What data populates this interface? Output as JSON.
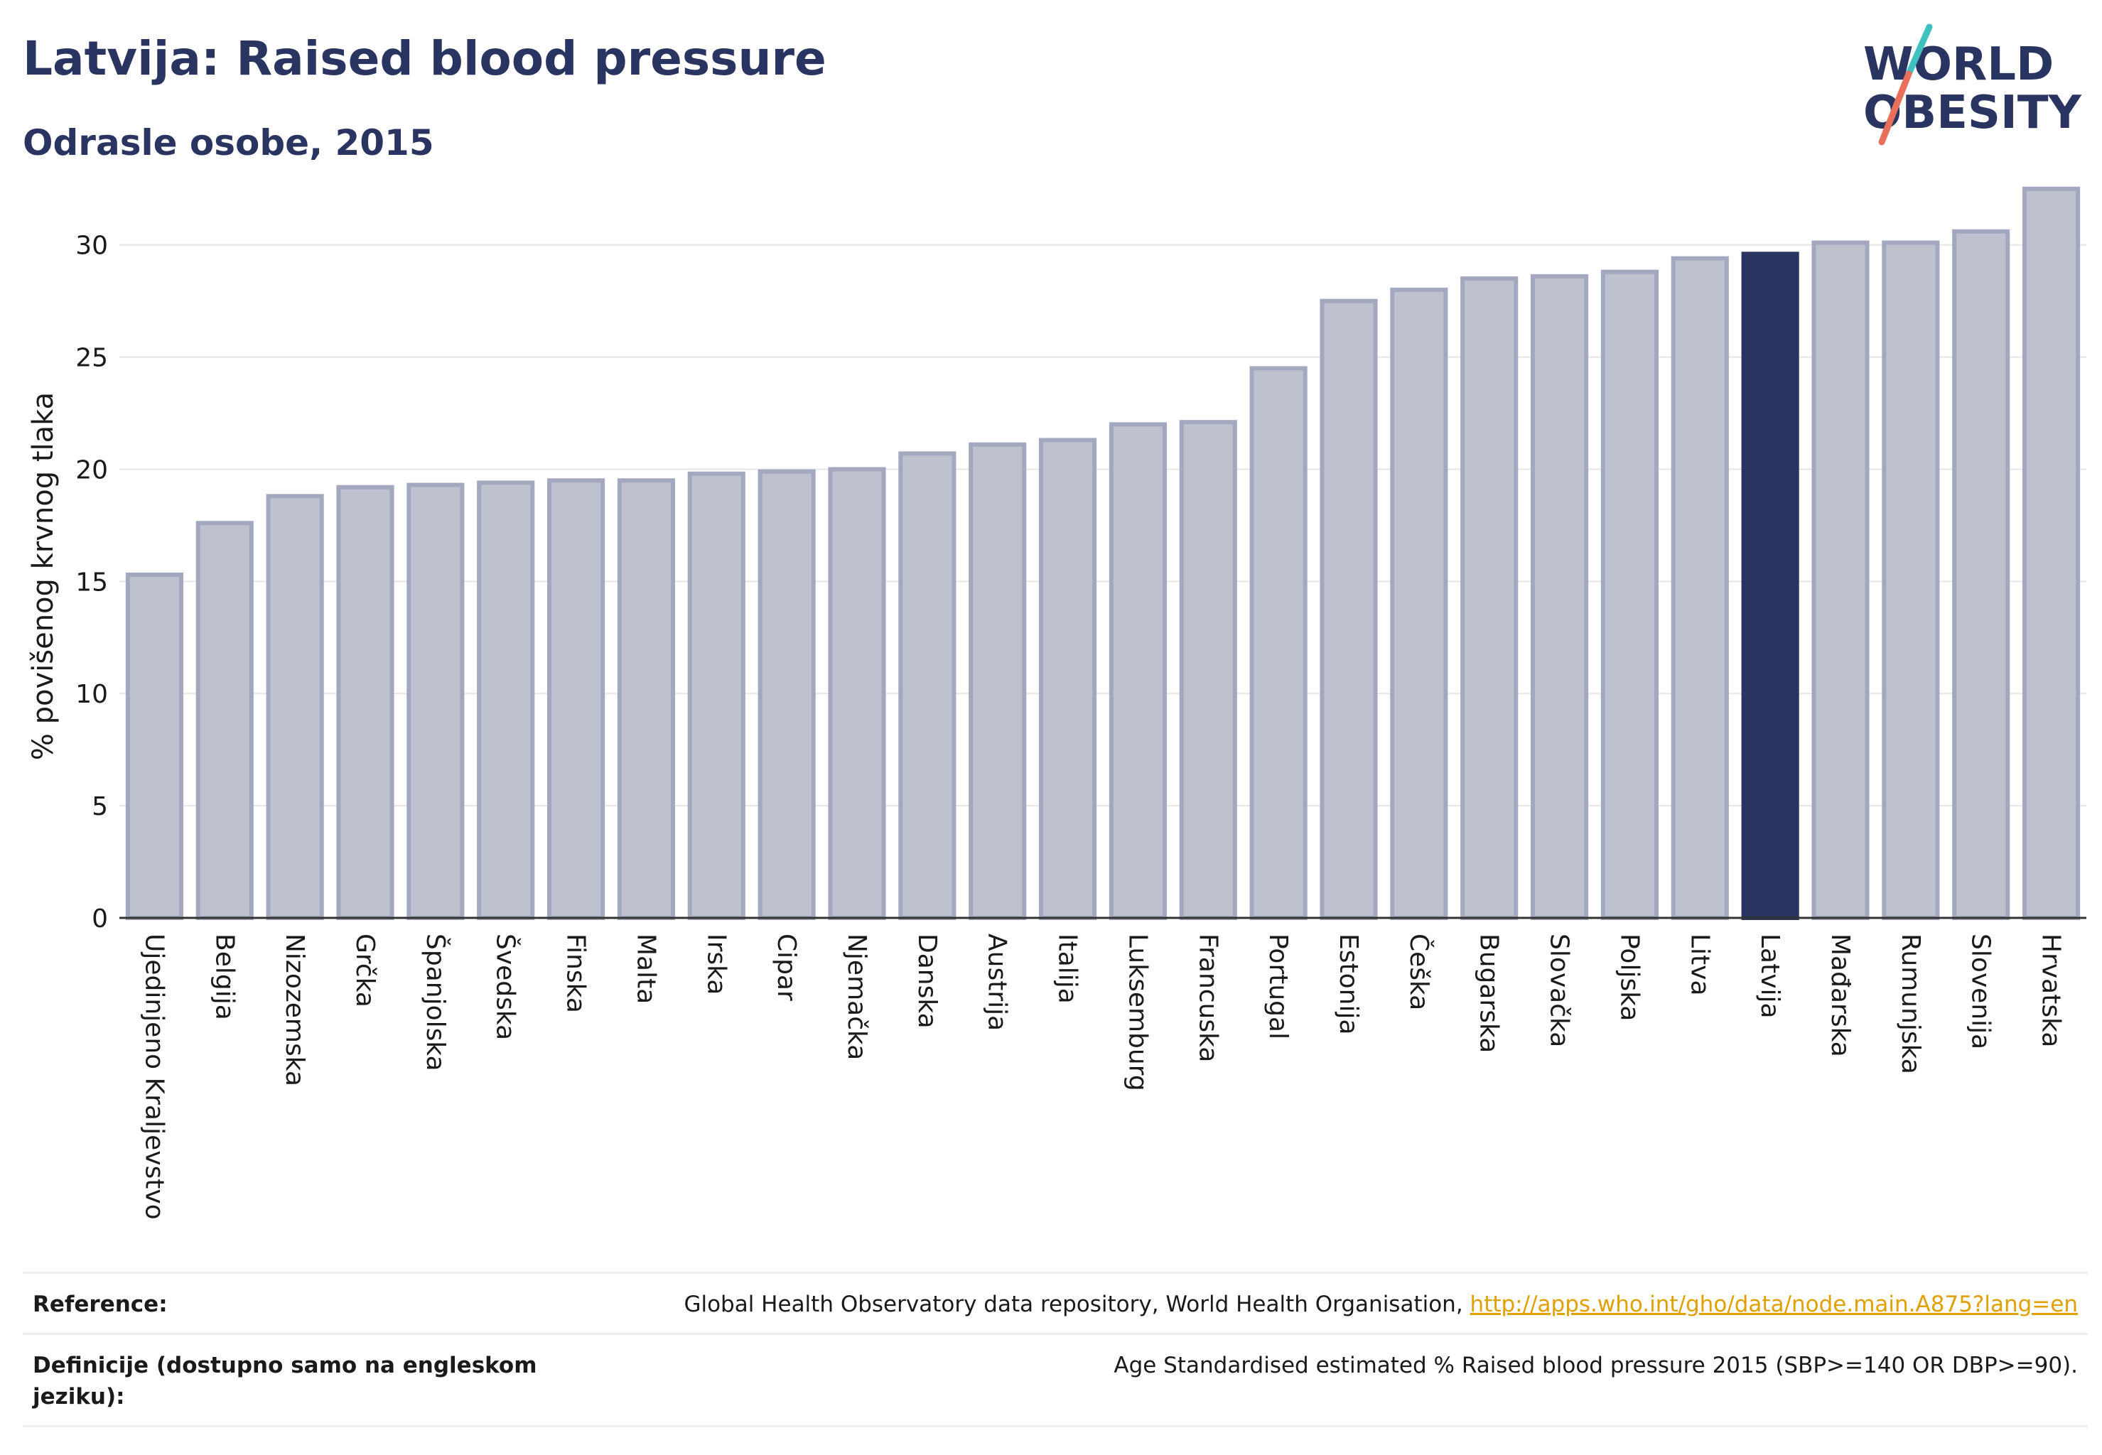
{
  "header": {
    "title": "Latvija: Raised blood pressure",
    "subtitle": "Odrasle osobe, 2015",
    "logo_line1": "WORLD",
    "logo_line2": "OBESITY"
  },
  "colors": {
    "bar": "#bec1ce",
    "bar_border": "#a3a8bf",
    "highlight": "#2a3461",
    "title": "#2a3461",
    "logo_teal": "#3fc1c0",
    "logo_coral": "#e8705a",
    "link": "#e0a100"
  },
  "chart_data": {
    "type": "bar",
    "title": "Latvija: Raised blood pressure",
    "subtitle": "Odrasle osobe, 2015",
    "ylabel": "% povišenog krvnog tlaka",
    "xlabel": "",
    "ylim": [
      0,
      33
    ],
    "yticks": [
      0,
      5,
      10,
      15,
      20,
      25,
      30
    ],
    "grid": true,
    "highlight": "Latvija",
    "categories": [
      "Ujedinjeno Kraljevstvo",
      "Belgija",
      "Nizozemska",
      "Grčka",
      "Španjolska",
      "Švedska",
      "Finska",
      "Malta",
      "Irska",
      "Cipar",
      "Njemačka",
      "Danska",
      "Austrija",
      "Italija",
      "Luksemburg",
      "Francuska",
      "Portugal",
      "Estonija",
      "Češka",
      "Bugarska",
      "Slovačka",
      "Poljska",
      "Litva",
      "Latvija",
      "Mađarska",
      "Rumunjska",
      "Slovenija",
      "Hrvatska"
    ],
    "values": [
      15.3,
      17.6,
      18.8,
      19.2,
      19.3,
      19.4,
      19.5,
      19.5,
      19.8,
      19.9,
      20.0,
      20.7,
      21.1,
      21.3,
      22.0,
      22.1,
      24.5,
      27.5,
      28.0,
      28.5,
      28.6,
      28.8,
      29.4,
      29.6,
      30.1,
      30.1,
      30.6,
      32.5
    ]
  },
  "notes": {
    "reference_label": "Reference:",
    "reference_text": "Global Health Observatory data repository, World Health Organisation, ",
    "reference_link": "http://apps.who.int/gho/data/node.main.A875?lang=en",
    "definition_label": "Definicije (dostupno samo na engleskom jeziku):",
    "definition_text": "Age Standardised estimated % Raised blood pressure 2015 (SBP>=140 OR DBP>=90)."
  }
}
